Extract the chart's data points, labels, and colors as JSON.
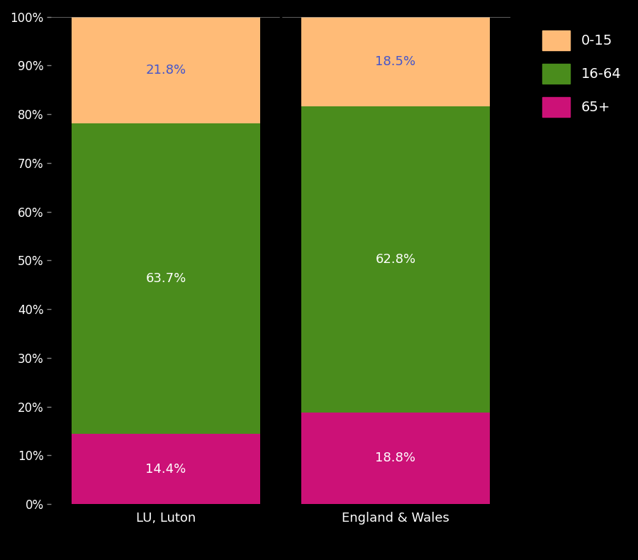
{
  "categories": [
    "LU, Luton",
    "England & Wales"
  ],
  "segments": {
    "65+": [
      14.4,
      18.8
    ],
    "16-64": [
      63.7,
      62.8
    ],
    "0-15": [
      21.8,
      18.5
    ]
  },
  "colors": {
    "0-15": "#FFBB77",
    "16-64": "#4A8C1C",
    "65+": "#CC1177"
  },
  "labels": {
    "65+": [
      "14.4%",
      "18.8%"
    ],
    "16-64": [
      "63.7%",
      "62.8%"
    ],
    "0-15": [
      "21.8%",
      "18.5%"
    ]
  },
  "label_colors": {
    "65+": "white",
    "16-64": "white",
    "0-15": "#4455CC"
  },
  "background_color": "#000000",
  "bar_width": 0.82,
  "ylim": [
    0,
    100
  ],
  "ytick_labels": [
    "0%",
    "10%",
    "20%",
    "30%",
    "40%",
    "50%",
    "60%",
    "70%",
    "80%",
    "90%",
    "100%"
  ],
  "ytick_values": [
    0,
    10,
    20,
    30,
    40,
    50,
    60,
    70,
    80,
    90,
    100
  ],
  "legend_order": [
    "0-15",
    "16-64",
    "65+"
  ],
  "font_size_labels": 13,
  "font_size_ticks": 12,
  "font_size_legend": 14,
  "font_size_xticks": 13
}
